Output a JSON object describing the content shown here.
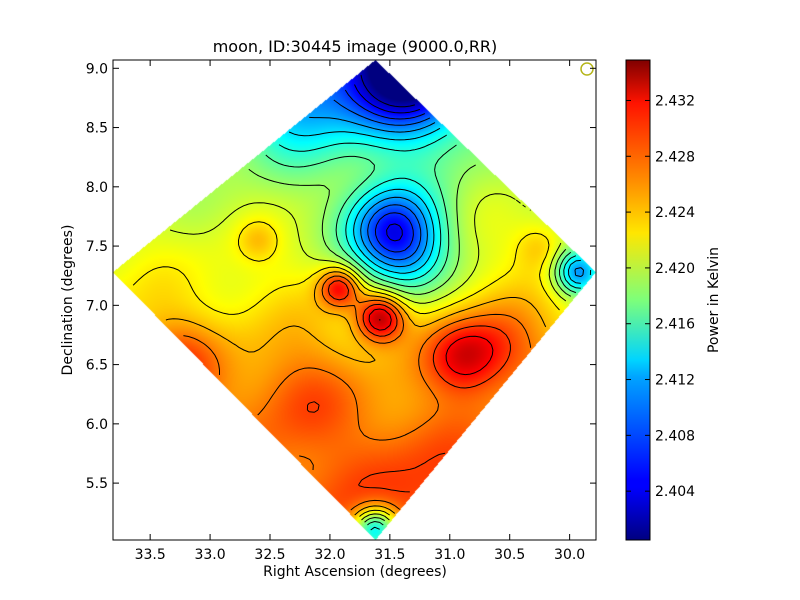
{
  "chart_data": {
    "type": "heatmap",
    "title": "moon, ID:30445 image (9000.0,RR)",
    "xlabel": "Right Ascension (degrees)",
    "ylabel": "Declination (degrees)",
    "colorbar_label": "Power in Kelvin",
    "colormap": "jet",
    "contours": true,
    "x_inverted": true,
    "xlim": [
      33.81,
      29.78
    ],
    "ylim": [
      5.02,
      9.07
    ],
    "zlim": [
      2.4005,
      2.4349
    ],
    "x_ticks": [
      33.5,
      33.0,
      32.5,
      32.0,
      31.5,
      31.0,
      30.5,
      30.0
    ],
    "x_tick_labels": [
      "33.5",
      "33.0",
      "32.5",
      "32.0",
      "31.5",
      "31.0",
      "30.5",
      "30.0"
    ],
    "y_ticks": [
      5.5,
      6.0,
      6.5,
      7.0,
      7.5,
      8.0,
      8.5,
      9.0
    ],
    "y_tick_labels": [
      "5.5",
      "6.0",
      "6.5",
      "7.0",
      "7.5",
      "8.0",
      "8.5",
      "9.0"
    ],
    "colorbar_ticks": [
      2.404,
      2.408,
      2.412,
      2.416,
      2.42,
      2.424,
      2.428,
      2.432
    ],
    "colorbar_tick_labels": [
      "2.404",
      "2.408",
      "2.412",
      "2.416",
      "2.420",
      "2.424",
      "2.428",
      "2.432"
    ],
    "valid_region": {
      "shape": "diamond",
      "corners": [
        [
          31.62,
          9.07
        ],
        [
          29.78,
          7.28
        ],
        [
          31.62,
          5.02
        ],
        [
          33.81,
          7.28
        ]
      ]
    },
    "field": {
      "background": 2.4225,
      "gradient_per_deg_dec": 0.0029,
      "components": [
        {
          "x": 31.35,
          "y": 9.02,
          "amp": -0.0215,
          "sigma": 0.38,
          "label": "cold spot top"
        },
        {
          "x": 32.25,
          "y": 8.75,
          "amp": -0.0075,
          "sigma": 0.35,
          "label": "cold lobe upper-left"
        },
        {
          "x": 31.48,
          "y": 7.62,
          "amp": -0.0155,
          "sigma": 0.27,
          "label": "cold spot center"
        },
        {
          "x": 31.32,
          "y": 7.32,
          "amp": -0.004,
          "sigma": 0.25,
          "label": "cold extension"
        },
        {
          "x": 29.92,
          "y": 7.28,
          "amp": -0.012,
          "sigma": 0.14,
          "label": "cold spot right edge"
        },
        {
          "x": 31.62,
          "y": 5.09,
          "amp": -0.015,
          "sigma": 0.14,
          "label": "cold spot bottom"
        },
        {
          "x": 31.92,
          "y": 7.15,
          "amp": 0.009,
          "sigma": 0.12,
          "label": "hot spot A"
        },
        {
          "x": 31.58,
          "y": 6.9,
          "amp": 0.011,
          "sigma": 0.14,
          "label": "hot spot B"
        },
        {
          "x": 30.88,
          "y": 6.57,
          "amp": 0.007,
          "sigma": 0.22,
          "label": "hot region right"
        },
        {
          "x": 30.55,
          "y": 6.68,
          "amp": 0.004,
          "sigma": 0.25,
          "label": "warm extension right"
        },
        {
          "x": 32.25,
          "y": 6.25,
          "amp": 0.003,
          "sigma": 0.32,
          "label": "warm region lower-left"
        },
        {
          "x": 33.3,
          "y": 6.5,
          "amp": 0.005,
          "sigma": 0.25,
          "label": "warm spot left"
        },
        {
          "x": 30.25,
          "y": 7.5,
          "amp": 0.003,
          "sigma": 0.15,
          "label": "warm spot right"
        },
        {
          "x": 32.6,
          "y": 7.55,
          "amp": 0.0025,
          "sigma": 0.12,
          "label": "warm blob"
        },
        {
          "x": 31.2,
          "y": 5.55,
          "amp": 0.002,
          "sigma": 0.4,
          "label": "warm bottom"
        }
      ]
    }
  }
}
